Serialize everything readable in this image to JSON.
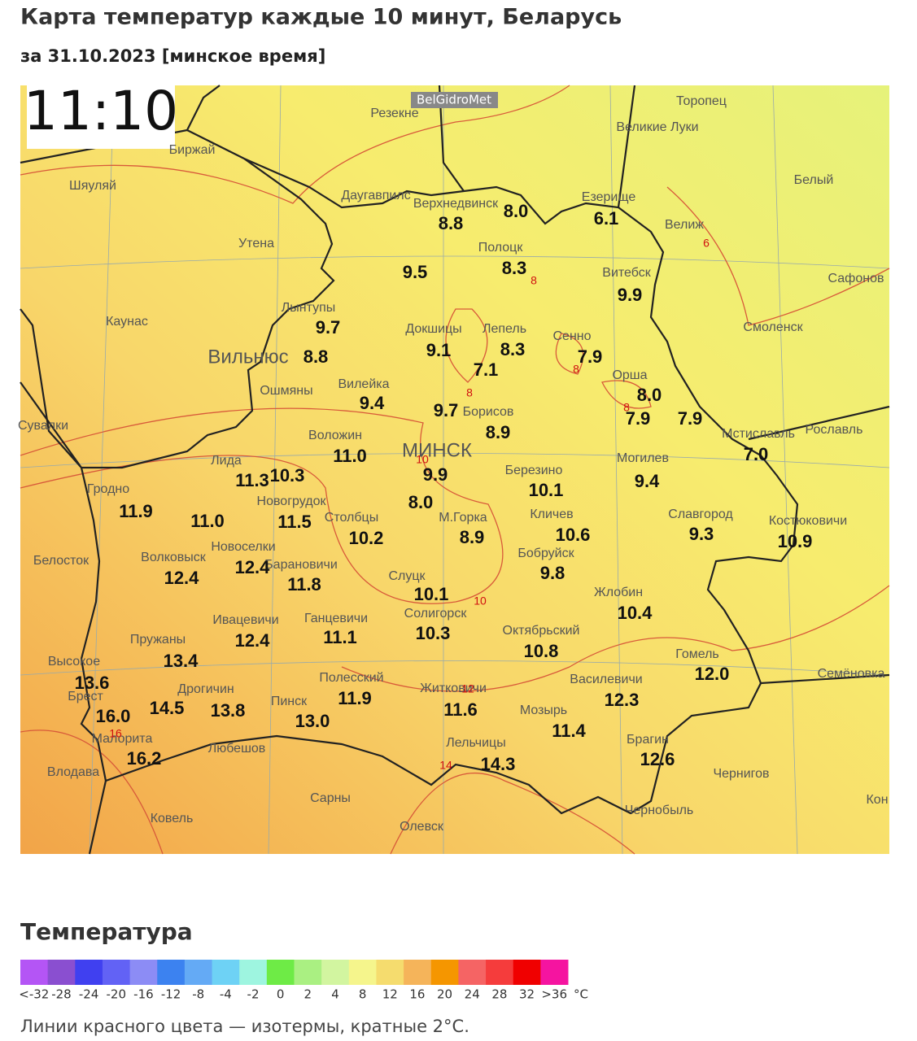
{
  "header": {
    "title": "Карта температур каждые 10 минут, Беларусь",
    "subtitle": "за 31.10.2023 [минское время]"
  },
  "map": {
    "time": "11:10",
    "watermark": "BelGidroMet",
    "places": [
      "Резекне",
      "Великие Луки",
      "Торопец",
      "Биржай",
      "Шяуляй",
      "Даугавпилс",
      "Верхнедвинск",
      "Езерище",
      "Белый",
      "Велиж",
      "Утена",
      "Полоцк",
      "Витебск",
      "Сафонов",
      "Каунас",
      "Лынтупы",
      "Докшицы",
      "Лепель",
      "Сенно",
      "Смоленск",
      "Вильнюс",
      "Орша",
      "Ошмяны",
      "Вилейка",
      "Борисов",
      "Сувалки",
      "Мстиславль",
      "Рославль",
      "Воложин",
      "МИНСК",
      "Лида",
      "Березино",
      "Могилев",
      "Гродно",
      "Новогрудок",
      "Столбцы",
      "М.Горка",
      "Кличев",
      "Славгород",
      "Костюковичи",
      "Новоселки",
      "Белосток",
      "Волковыск",
      "Бобруйск",
      "Барановичи",
      "Слуцк",
      "Жлобин",
      "Ивацевичи",
      "Ганцевичи",
      "Солигорск",
      "Октябрьский",
      "Пружаны",
      "Гомель",
      "Высокое",
      "Семёновка",
      "Полесский",
      "Дрогичин",
      "Брест",
      "Житковичи",
      "Василевичи",
      "Пинск",
      "Мозырь",
      "Малорита",
      "Брагин",
      "Любешов",
      "Лельчицы",
      "Чернигов",
      "Влодава",
      "Сарны",
      "Ковель",
      "Чернобыль",
      "Олевск",
      "Кон"
    ],
    "readings": [
      "8.8",
      "8.0",
      "6.1",
      "9.5",
      "8.3",
      "9.9",
      "9.7",
      "8.8",
      "9.1",
      "8.3",
      "7.1",
      "7.9",
      "9.4",
      "8.0",
      "9.7",
      "8.9",
      "7.9",
      "7.9",
      "7.0",
      "11.0",
      "11.3",
      "10.3",
      "9.9",
      "10.1",
      "9.4",
      "11.9",
      "11.0",
      "11.5",
      "8.0",
      "10.2",
      "8.9",
      "10.6",
      "9.3",
      "10.9",
      "12.4",
      "12.4",
      "11.8",
      "9.8",
      "10.1",
      "10.4",
      "12.4",
      "11.1",
      "10.3",
      "10.8",
      "13.4",
      "12.0",
      "13.6",
      "11.9",
      "11.6",
      "12.3",
      "16.0",
      "14.5",
      "13.8",
      "13.0",
      "11.4",
      "16.2",
      "14.3",
      "12.6"
    ],
    "isotherms": [
      "8",
      "6",
      "8",
      "8",
      "8",
      "10",
      "10",
      "12",
      "16",
      "14"
    ]
  },
  "legend": {
    "title": "Температура",
    "unit": "°C",
    "items": [
      {
        "label": "<-32",
        "color": "#b455f5"
      },
      {
        "label": "-28",
        "color": "#8a4fd0"
      },
      {
        "label": "-24",
        "color": "#4040f0"
      },
      {
        "label": "-20",
        "color": "#6262f5"
      },
      {
        "label": "-16",
        "color": "#8c8cf5"
      },
      {
        "label": "-12",
        "color": "#3c82f0"
      },
      {
        "label": "-8",
        "color": "#64aaf5"
      },
      {
        "label": "-4",
        "color": "#6ed2f5"
      },
      {
        "label": "-2",
        "color": "#9ef5e0"
      },
      {
        "label": "0",
        "color": "#6eeb46"
      },
      {
        "label": "2",
        "color": "#aaf082"
      },
      {
        "label": "4",
        "color": "#d2f5a0"
      },
      {
        "label": "8",
        "color": "#f5f58c"
      },
      {
        "label": "12",
        "color": "#f5dc6e"
      },
      {
        "label": "16",
        "color": "#f5b45a"
      },
      {
        "label": "20",
        "color": "#f59600"
      },
      {
        "label": "24",
        "color": "#f56464"
      },
      {
        "label": "28",
        "color": "#f53c3c"
      },
      {
        "label": "32",
        "color": "#f00000"
      },
      {
        "label": ">36",
        "color": "#f514a0"
      }
    ],
    "note": "Линии красного цвета — изотермы, кратные 2°С."
  }
}
